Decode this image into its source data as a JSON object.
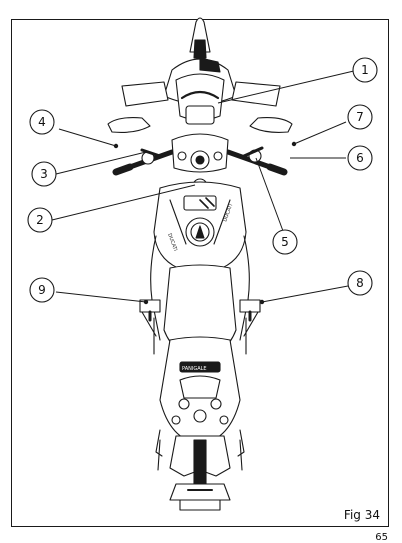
{
  "figure": {
    "caption": "Fig 34",
    "page_number": "65",
    "callouts": [
      "1",
      "2",
      "3",
      "4",
      "5",
      "6",
      "7",
      "8",
      "9"
    ]
  },
  "decals": {
    "tank_left": "DUCATI",
    "tank_right": "DUCATI",
    "tail": "PANIGALE"
  }
}
